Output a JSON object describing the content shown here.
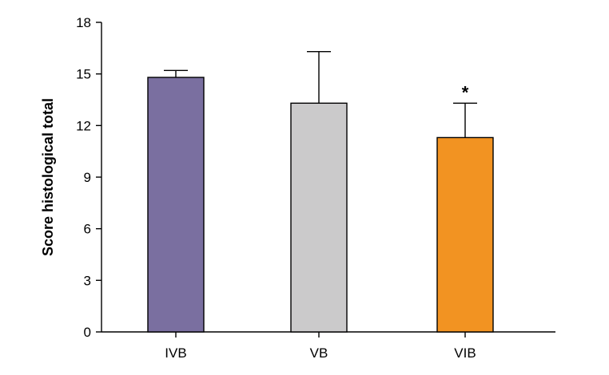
{
  "chart_data": {
    "type": "bar",
    "title": "",
    "xlabel": "",
    "ylabel": "Score histological total",
    "ylim": [
      0,
      18
    ],
    "yticks": [
      "0",
      "3",
      "6",
      "9",
      "12",
      "15",
      "18"
    ],
    "categories": [
      "IVB",
      "VB",
      "VIB"
    ],
    "values": [
      14.8,
      13.3,
      11.3
    ],
    "errors": [
      0.4,
      3.0,
      2.0
    ],
    "colors": [
      "#7a6fa0",
      "#cbcacb",
      "#f29322"
    ],
    "annotations": [
      "",
      "",
      "*"
    ]
  }
}
